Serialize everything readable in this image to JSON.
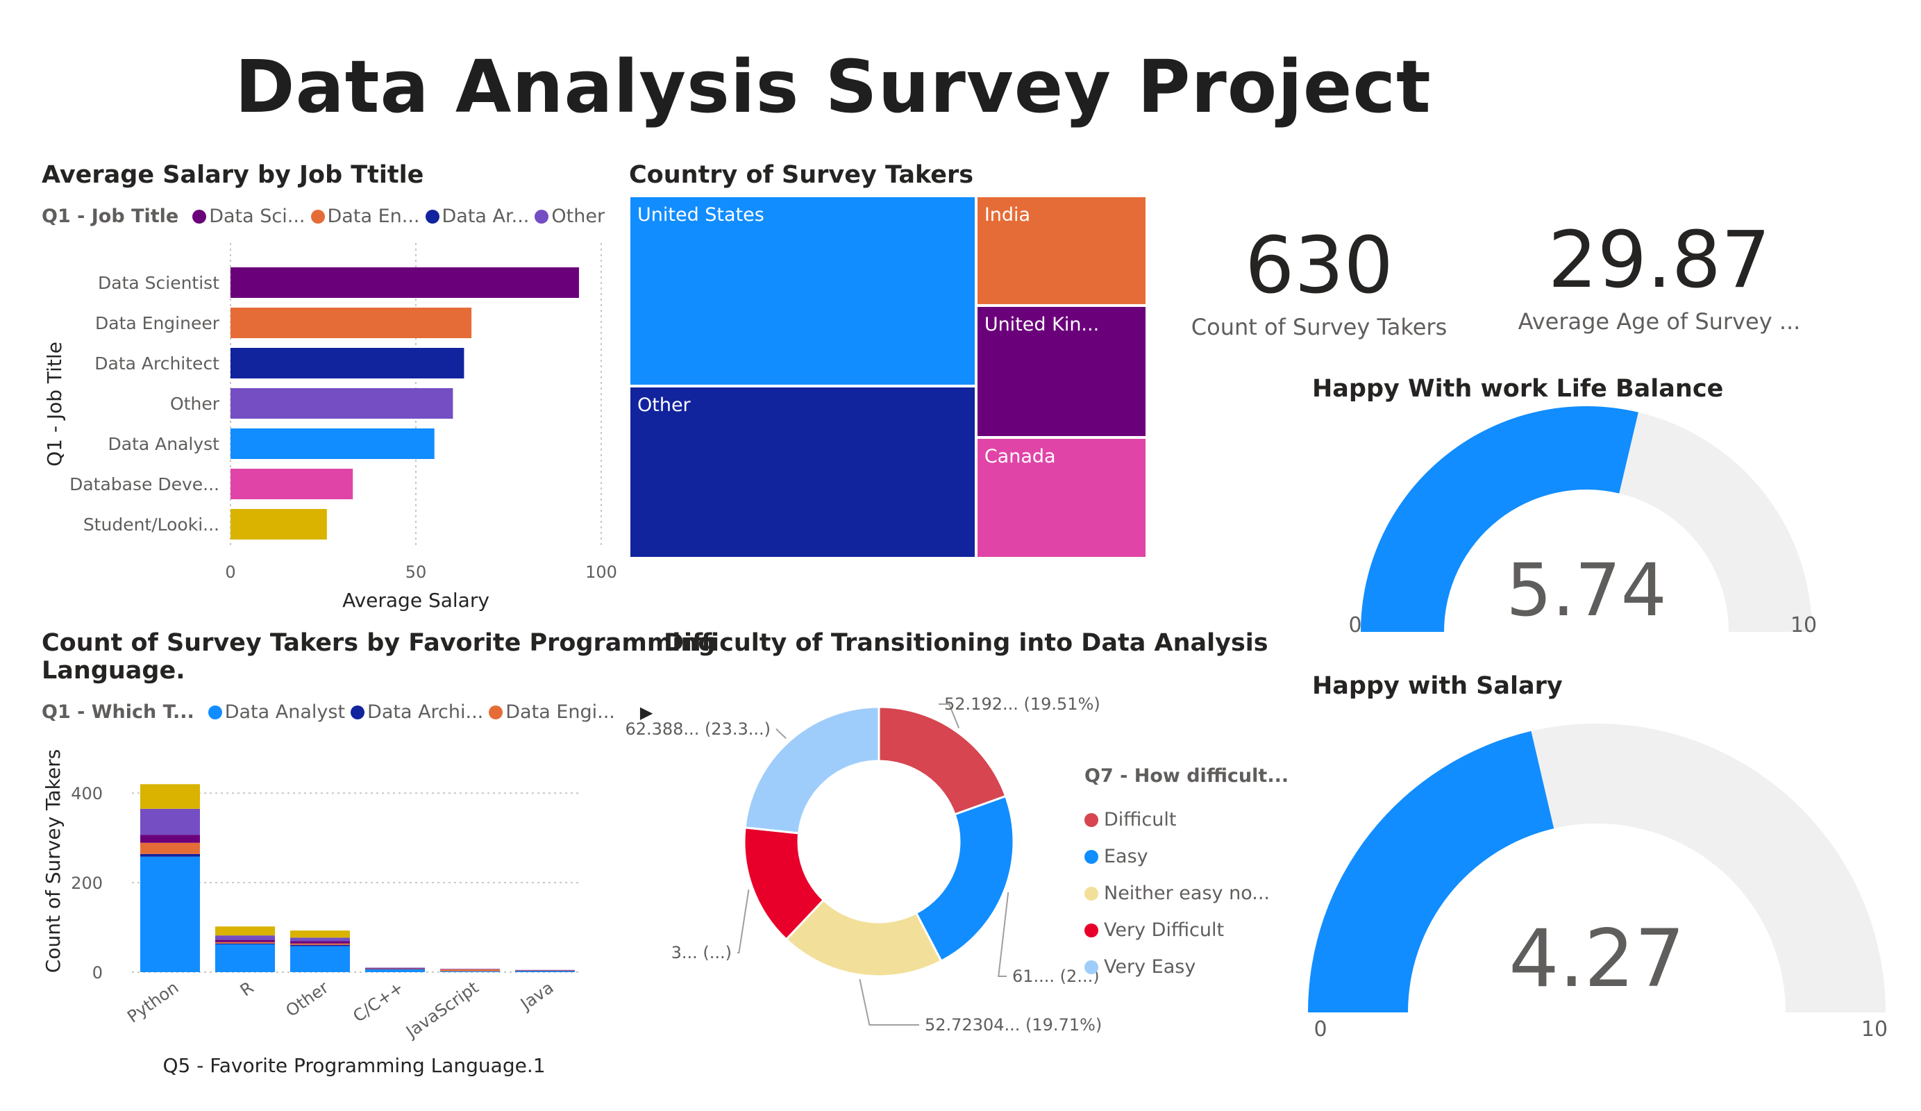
{
  "page_title": "Data Analysis Survey Project",
  "salary_visual": {
    "title": "Average Salary by Job Ttitle",
    "legend_title": "Q1 - Job Title",
    "legend_items": [
      {
        "label": "Data Sci...",
        "color": "#6b007b"
      },
      {
        "label": "Data En...",
        "color": "#e66c37"
      },
      {
        "label": "Data Ar...",
        "color": "#12239e"
      },
      {
        "label": "Other",
        "color": "#744ec2"
      }
    ],
    "legend_arrow": "▶"
  },
  "programming_visual": {
    "title_line1": "Count of Survey Takers by Favorite Programming",
    "title_line2": "Language.",
    "legend_title": "Q1 - Which T...",
    "legend_items": [
      {
        "label": "Data Analyst",
        "color": "#118dff"
      },
      {
        "label": "Data Archi...",
        "color": "#12239e"
      },
      {
        "label": "Data Engi...",
        "color": "#e66c37"
      }
    ],
    "legend_arrow": "▶"
  },
  "country_visual": {
    "title": "Country of Survey Takers"
  },
  "difficulty_visual": {
    "title": "Difficulty of Transitioning into Data Analysis",
    "legend_title": "Q7 - How difficult...",
    "legend_items": [
      {
        "label": "Difficult",
        "color": "#d64550"
      },
      {
        "label": "Easy",
        "color": "#118dff"
      },
      {
        "label": "Neither easy no...",
        "color": "#f2e09a"
      },
      {
        "label": "Very Difficult",
        "color": "#e8002b"
      },
      {
        "label": "Very Easy",
        "color": "#9fcdfb"
      }
    ]
  },
  "cards": {
    "count": {
      "value": "630",
      "label": "Count of Survey Takers"
    },
    "age": {
      "value": "29.87",
      "label": "Average Age of Survey ..."
    }
  },
  "gauges": {
    "work_life": {
      "title": "Happy With work Life Balance",
      "min_label": "0",
      "max_label": "10",
      "value_label": "5.74"
    },
    "salary": {
      "title": "Happy with Salary",
      "min_label": "0",
      "max_label": "10",
      "value_label": "4.27"
    }
  },
  "chart_data": [
    {
      "type": "bar",
      "orientation": "horizontal",
      "title": "Average Salary by Job Ttitle",
      "xlabel": "Average Salary",
      "ylabel": "Q1 - Job Title",
      "categories": [
        "Data Scientist",
        "Data Engineer",
        "Data Architect",
        "Other",
        "Data Analyst",
        "Database Deve...",
        "Student/Looki..."
      ],
      "values": [
        94,
        65,
        63,
        60,
        55,
        33,
        26
      ],
      "colors": [
        "#6b007b",
        "#e66c37",
        "#12239e",
        "#744ec2",
        "#118dff",
        "#e044a7",
        "#d9b300"
      ],
      "xlim": [
        0,
        100
      ],
      "xticks": [
        "0",
        "50",
        "100"
      ],
      "grid": true
    },
    {
      "type": "bar",
      "stacked": true,
      "title": "Count of Survey Takers by Favorite Programming Language.",
      "xlabel": "Q5 - Favorite Programming Language.1",
      "ylabel": "Count of Survey Takers",
      "categories": [
        "Python",
        "R",
        "Other",
        "C/C++",
        "JavaScript",
        "Java"
      ],
      "ylim": [
        0,
        450
      ],
      "yticks": [
        "0",
        "200",
        "400"
      ],
      "series": [
        {
          "name": "Data Analyst",
          "color": "#118dff",
          "values": [
            258,
            62,
            58,
            6,
            2,
            2
          ]
        },
        {
          "name": "Data Architect",
          "color": "#12239e",
          "values": [
            6,
            2,
            3,
            1,
            0,
            1
          ]
        },
        {
          "name": "Data Engineer",
          "color": "#e66c37",
          "values": [
            25,
            3,
            3,
            1,
            4,
            1
          ]
        },
        {
          "color": "#6b007b",
          "values": [
            18,
            5,
            5,
            1,
            1,
            0
          ]
        },
        {
          "color": "#744ec2",
          "values": [
            58,
            10,
            8,
            1,
            0,
            1
          ]
        },
        {
          "color": "#d9b300",
          "values": [
            55,
            20,
            16,
            0,
            0,
            0
          ]
        }
      ]
    },
    {
      "type": "treemap",
      "title": "Country of Survey Takers",
      "items": [
        {
          "label": "United States",
          "color": "#118dff",
          "share": 0.352
        },
        {
          "label": "Other",
          "color": "#12239e",
          "share": 0.318
        },
        {
          "label": "India",
          "color": "#e66c37",
          "share": 0.1
        },
        {
          "label": "United Kin...",
          "color": "#6b007b",
          "share": 0.12
        },
        {
          "label": "Canada",
          "color": "#e044a7",
          "share": 0.11
        }
      ]
    },
    {
      "type": "pie",
      "donut": true,
      "title": "Difficulty of Transitioning into Data Analysis",
      "slices": [
        {
          "name": "Difficult",
          "value": 52.192,
          "percent": 19.51,
          "color": "#d64550",
          "label": "52.192... (19.51%)"
        },
        {
          "name": "Easy",
          "value": 61,
          "percent": 22.8,
          "color": "#118dff",
          "label": "61.... (2...)"
        },
        {
          "name": "Neither easy no...",
          "value": 52.72304,
          "percent": 19.71,
          "color": "#f2e09a",
          "label": "52.72304... (19.71%)"
        },
        {
          "name": "Very Difficult",
          "value": 39,
          "percent": 14.6,
          "color": "#e8002b",
          "label": "3... (...)"
        },
        {
          "name": "Very Easy",
          "value": 62.388,
          "percent": 23.3,
          "color": "#9fcdfb",
          "label": "62.388... (23.3...)"
        }
      ]
    },
    {
      "type": "gauge",
      "title": "Happy With work Life Balance",
      "min": 0,
      "max": 10,
      "value": 5.74,
      "fill_color": "#118dff",
      "track_color": "#f0f0f0"
    },
    {
      "type": "gauge",
      "title": "Happy with Salary",
      "min": 0,
      "max": 10,
      "value": 4.27,
      "fill_color": "#118dff",
      "track_color": "#f0f0f0"
    }
  ]
}
